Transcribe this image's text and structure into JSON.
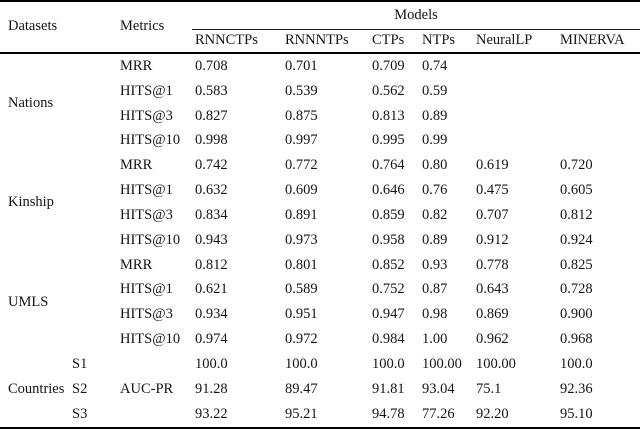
{
  "table": {
    "header": {
      "datasets": "Datasets",
      "metrics": "Metrics",
      "models_group": "Models",
      "model_columns": [
        "RNNCTPs",
        "RNNNTPs",
        "CTPs",
        "NTPs",
        "NeuralLP",
        "MINERVA"
      ]
    },
    "groups": [
      {
        "dataset": "Nations",
        "rows": [
          {
            "metric": "MRR",
            "values": [
              "0.708",
              "0.701",
              "0.709",
              "0.74",
              "",
              ""
            ]
          },
          {
            "metric": "HITS@1",
            "values": [
              "0.583",
              "0.539",
              "0.562",
              "0.59",
              "",
              ""
            ]
          },
          {
            "metric": "HITS@3",
            "values": [
              "0.827",
              "0.875",
              "0.813",
              "0.89",
              "",
              ""
            ]
          },
          {
            "metric": "HITS@10",
            "values": [
              "0.998",
              "0.997",
              "0.995",
              "0.99",
              "",
              ""
            ]
          }
        ]
      },
      {
        "dataset": "Kinship",
        "rows": [
          {
            "metric": "MRR",
            "values": [
              "0.742",
              "0.772",
              "0.764",
              "0.80",
              "0.619",
              "0.720"
            ]
          },
          {
            "metric": "HITS@1",
            "values": [
              "0.632",
              "0.609",
              "0.646",
              "0.76",
              "0.475",
              "0.605"
            ]
          },
          {
            "metric": "HITS@3",
            "values": [
              "0.834",
              "0.891",
              "0.859",
              "0.82",
              "0.707",
              "0.812"
            ]
          },
          {
            "metric": "HITS@10",
            "values": [
              "0.943",
              "0.973",
              "0.958",
              "0.89",
              "0.912",
              "0.924"
            ]
          }
        ]
      },
      {
        "dataset": "UMLS",
        "rows": [
          {
            "metric": "MRR",
            "values": [
              "0.812",
              "0.801",
              "0.852",
              "0.93",
              "0.778",
              "0.825"
            ]
          },
          {
            "metric": "HITS@1",
            "values": [
              "0.621",
              "0.589",
              "0.752",
              "0.87",
              "0.643",
              "0.728"
            ]
          },
          {
            "metric": "HITS@3",
            "values": [
              "0.934",
              "0.951",
              "0.947",
              "0.98",
              "0.869",
              "0.900"
            ]
          },
          {
            "metric": "HITS@10",
            "values": [
              "0.974",
              "0.972",
              "0.984",
              "1.00",
              "0.962",
              "0.968"
            ]
          }
        ]
      },
      {
        "dataset": "Countries",
        "shared_metric": "AUC-PR",
        "rows": [
          {
            "sub": "S1",
            "values": [
              "100.0",
              "100.0",
              "100.0",
              "100.00",
              "100.00",
              "100.0"
            ]
          },
          {
            "sub": "S2",
            "values": [
              "91.28",
              "89.47",
              "91.81",
              "93.04",
              "75.1",
              "92.36"
            ]
          },
          {
            "sub": "S3",
            "values": [
              "93.22",
              "95.21",
              "94.78",
              "77.26",
              "92.20",
              "95.10"
            ]
          }
        ]
      }
    ]
  },
  "colors": {
    "text": "#141414",
    "background": "#ffffff",
    "rule": "#000000"
  }
}
